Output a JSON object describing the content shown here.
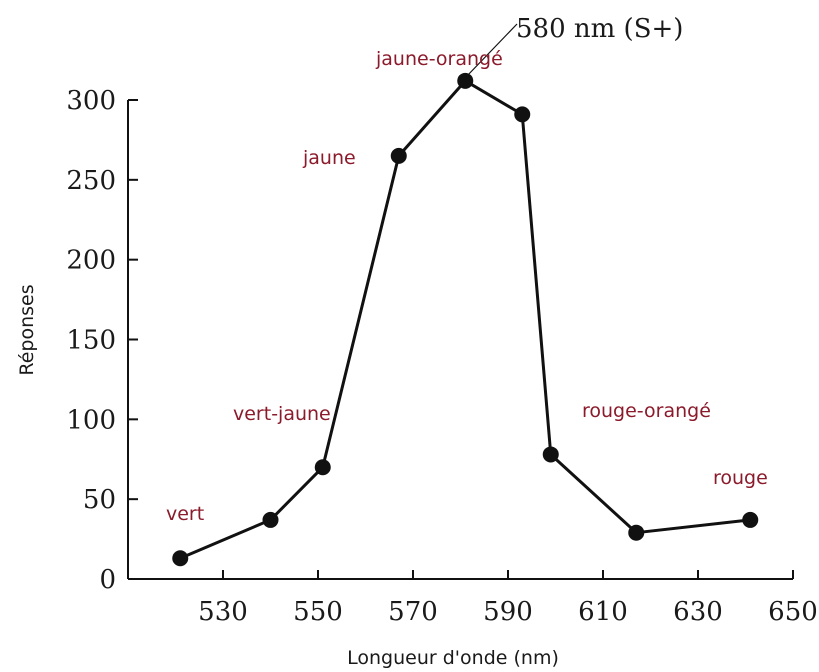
{
  "chart_data": {
    "type": "line",
    "xlabel": "Longueur d'onde  (nm)",
    "ylabel": "Réponses",
    "xlim": [
      510,
      650
    ],
    "ylim": [
      0,
      300
    ],
    "x_ticks": [
      530,
      550,
      570,
      590,
      610,
      630,
      650
    ],
    "y_ticks": [
      0,
      50,
      100,
      150,
      200,
      250,
      300
    ],
    "series": [
      {
        "x": [
          521,
          540,
          551,
          567,
          581,
          593,
          599,
          617,
          641
        ],
        "y": [
          13,
          37,
          70,
          265,
          312,
          291,
          78,
          29,
          37
        ]
      }
    ],
    "annotations": {
      "peak": "580 nm (S+)",
      "colors": [
        "vert",
        "vert-jaune",
        "jaune",
        "jaune-orangé",
        "rouge-orangé",
        "rouge"
      ]
    },
    "line_color": "#111111",
    "label_color": "#8b1a2b"
  }
}
